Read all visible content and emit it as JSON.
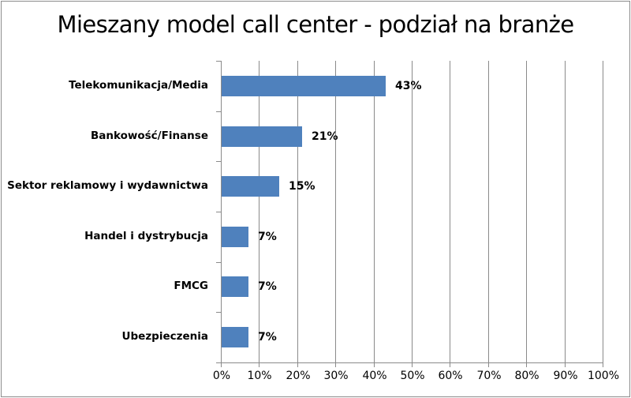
{
  "chart_data": {
    "type": "bar",
    "orientation": "horizontal",
    "title": "Mieszany model call center - podział na branże",
    "xlabel": "",
    "ylabel": "",
    "categories": [
      "Telekomunikacja/Media",
      "Bankowość/Finanse",
      "Sektor reklamowy i wydawnictwa",
      "Handel i dystrybucja",
      "FMCG",
      "Ubezpieczenia"
    ],
    "values": [
      43,
      21,
      15,
      7,
      7,
      7
    ],
    "data_labels": [
      "43%",
      "21%",
      "15%",
      "7%",
      "7%",
      "7%"
    ],
    "xlim": [
      0,
      100
    ],
    "x_ticks": [
      "0%",
      "10%",
      "20%",
      "30%",
      "40%",
      "50%",
      "60%",
      "70%",
      "80%",
      "90%",
      "100%"
    ],
    "grid": {
      "vertical": true,
      "horizontal": false
    },
    "legend": null,
    "bar_color": "#4f81bd"
  }
}
